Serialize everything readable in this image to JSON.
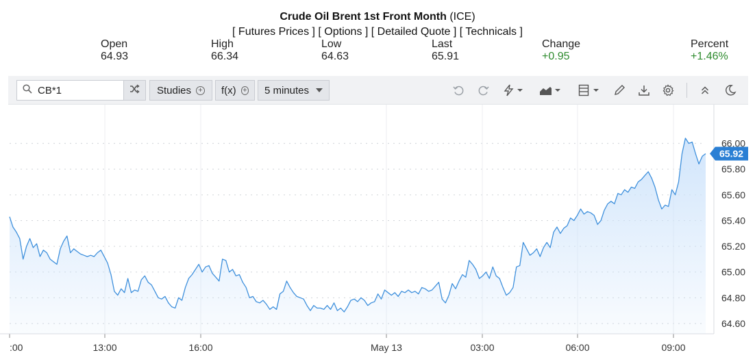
{
  "header": {
    "title": "Crude Oil Brent 1st Front Month",
    "exchange": "(ICE)",
    "links": [
      "[ Futures Prices ]",
      "[ Options ]",
      "[ Detailed Quote ]",
      "[ Technicals ]"
    ]
  },
  "quote": {
    "open_label": "Open",
    "open_value": "64.93",
    "high_label": "High",
    "high_value": "66.34",
    "low_label": "Low",
    "low_value": "64.63",
    "last_label": "Last",
    "last_value": "65.91",
    "change_label": "Change",
    "change_value": "+0.95",
    "percent_label": "Percent",
    "percent_value": "+1.46%"
  },
  "colors": {
    "positive": "#2e8b2e",
    "line": "#3d8fdc",
    "fill_top": "#cfe4fb",
    "badge": "#2a7fd4"
  },
  "toolbar": {
    "search_value": "CB*1",
    "studies_label": "Studies",
    "fx_label": "f(x)",
    "interval_label": "5 minutes",
    "icons": [
      "search-icon",
      "shuffle-icon",
      "undo-icon",
      "redo-icon",
      "lightning-icon",
      "area-chart-icon",
      "layout-icon",
      "pencil-icon",
      "download-icon",
      "gear-icon",
      "double-chevron-up-icon",
      "moon-icon"
    ]
  },
  "chart_data": {
    "type": "area",
    "ylim": [
      64.52,
      66.12
    ],
    "yticks": [
      "66.00",
      "65.80",
      "65.60",
      "65.40",
      "65.20",
      "65.00",
      "64.80",
      "64.60"
    ],
    "xticks": [
      ":00",
      "13:00",
      "16:00",
      "May 13",
      "03:00",
      "06:00",
      "09:00"
    ],
    "last_price_label": "65.92",
    "last_price": 65.92,
    "grid": true,
    "y": [
      65.43,
      65.35,
      65.31,
      65.26,
      65.1,
      65.2,
      65.26,
      65.19,
      65.22,
      65.12,
      65.17,
      65.15,
      65.1,
      65.08,
      65.06,
      65.18,
      65.24,
      65.28,
      65.15,
      65.18,
      65.16,
      65.14,
      65.13,
      65.12,
      65.13,
      65.12,
      65.15,
      65.17,
      65.12,
      65.07,
      64.98,
      64.85,
      64.82,
      64.87,
      64.84,
      64.95,
      64.84,
      64.86,
      64.85,
      64.94,
      64.97,
      64.92,
      64.9,
      64.85,
      64.8,
      64.79,
      64.81,
      64.76,
      64.73,
      64.72,
      64.8,
      64.78,
      64.88,
      64.95,
      64.98,
      65.02,
      65.06,
      65.0,
      65.04,
      65.05,
      64.99,
      64.96,
      64.93,
      65.1,
      65.09,
      65.0,
      65.02,
      64.97,
      64.98,
      64.92,
      64.88,
      64.8,
      64.81,
      64.77,
      64.76,
      64.78,
      64.75,
      64.71,
      64.73,
      64.71,
      64.83,
      64.85,
      64.93,
      64.88,
      64.84,
      64.81,
      64.8,
      64.79,
      64.74,
      64.7,
      64.74,
      64.72,
      64.72,
      64.71,
      64.74,
      64.71,
      64.76,
      64.7,
      64.72,
      64.69,
      64.73,
      64.78,
      64.79,
      64.77,
      64.8,
      64.78,
      64.74,
      64.76,
      64.77,
      64.83,
      64.79,
      64.86,
      64.84,
      64.82,
      64.84,
      64.81,
      64.85,
      64.84,
      64.86,
      64.84,
      64.85,
      64.83,
      64.88,
      64.87,
      64.85,
      64.86,
      64.89,
      64.92,
      64.79,
      64.76,
      64.82,
      64.91,
      64.87,
      64.93,
      64.98,
      64.96,
      65.09,
      65.06,
      65.02,
      64.95,
      64.97,
      65.0,
      64.95,
      65.04,
      64.97,
      64.95,
      64.88,
      64.82,
      64.84,
      64.88,
      65.04,
      65.05,
      65.23,
      65.18,
      65.13,
      65.15,
      65.18,
      65.12,
      65.19,
      65.23,
      65.19,
      65.31,
      65.35,
      65.3,
      65.34,
      65.36,
      65.42,
      65.4,
      65.44,
      65.49,
      65.45,
      65.47,
      65.46,
      65.44,
      65.37,
      65.4,
      65.48,
      65.53,
      65.55,
      65.53,
      65.61,
      65.6,
      65.64,
      65.62,
      65.66,
      65.65,
      65.7,
      65.72,
      65.75,
      65.78,
      65.73,
      65.66,
      65.56,
      65.49,
      65.52,
      65.51,
      65.64,
      65.6,
      65.7,
      65.92,
      66.04,
      66.0,
      66.01,
      65.92,
      65.84,
      65.9,
      65.92
    ]
  }
}
